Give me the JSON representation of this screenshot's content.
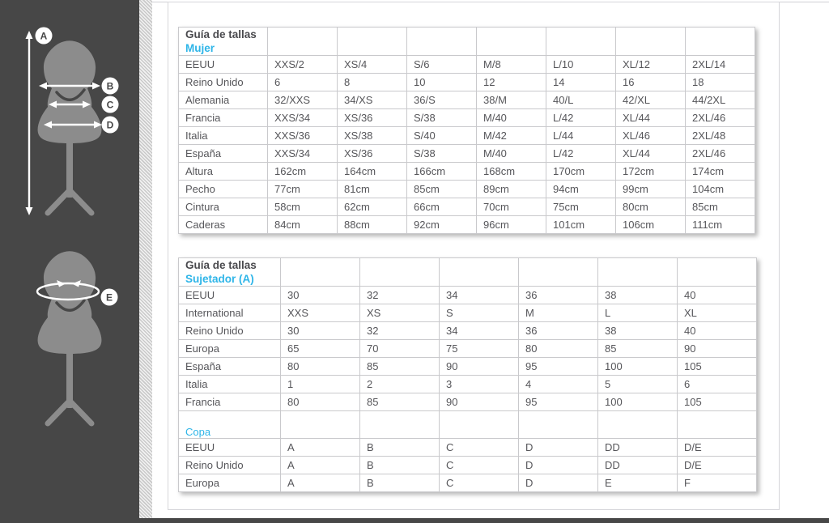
{
  "colors": {
    "accent_cyan": "#2eb5e8",
    "sidebar_bg": "#474747",
    "mannequin_gray": "#8c8c8c",
    "table_border": "#c9c9cc",
    "text": "#56565a"
  },
  "sidebar": {
    "figure1": {
      "labels": {
        "a": "A",
        "b": "B",
        "c": "C",
        "d": "D"
      }
    },
    "figure2": {
      "labels": {
        "e": "E"
      }
    }
  },
  "tables": [
    {
      "title": "Guía de tallas",
      "subtitle": "Mujer",
      "rows": [
        {
          "label": "EEUU",
          "values": [
            "XXS/2",
            "XS/4",
            "S/6",
            "M/8",
            "L/10",
            "XL/12",
            "2XL/14"
          ]
        },
        {
          "label": "Reino Unido",
          "values": [
            "6",
            "8",
            "10",
            "12",
            "14",
            "16",
            "18"
          ]
        },
        {
          "label": "Alemania",
          "values": [
            "32/XXS",
            "34/XS",
            "36/S",
            "38/M",
            "40/L",
            "42/XL",
            "44/2XL"
          ]
        },
        {
          "label": "Francia",
          "values": [
            "XXS/34",
            "XS/36",
            "S/38",
            "M/40",
            "L/42",
            "XL/44",
            "2XL/46"
          ]
        },
        {
          "label": "Italia",
          "values": [
            "XXS/36",
            "XS/38",
            "S/40",
            "M/42",
            "L/44",
            "XL/46",
            "2XL/48"
          ]
        },
        {
          "label": "España",
          "values": [
            "XXS/34",
            "XS/36",
            "S/38",
            "M/40",
            "L/42",
            "XL/44",
            "2XL/46"
          ]
        },
        {
          "label": "Altura",
          "values": [
            "162cm",
            "164cm",
            "166cm",
            "168cm",
            "170cm",
            "172cm",
            "174cm"
          ]
        },
        {
          "label": "Pecho",
          "values": [
            "77cm",
            "81cm",
            "85cm",
            "89cm",
            "94cm",
            "99cm",
            "104cm"
          ]
        },
        {
          "label": "Cintura",
          "values": [
            "58cm",
            "62cm",
            "66cm",
            "70cm",
            "75cm",
            "80cm",
            "85cm"
          ]
        },
        {
          "label": "Caderas",
          "values": [
            "84cm",
            "88cm",
            "92cm",
            "96cm",
            "101cm",
            "106cm",
            "111cm"
          ]
        }
      ]
    },
    {
      "title": "Guía de tallas",
      "subtitle": "Sujetador (A)",
      "rows": [
        {
          "label": "EEUU",
          "values": [
            "30",
            "32",
            "34",
            "36",
            "38",
            "40"
          ]
        },
        {
          "label": "International",
          "values": [
            "XXS",
            "XS",
            "S",
            "M",
            "L",
            "XL"
          ]
        },
        {
          "label": "Reino Unido",
          "values": [
            "30",
            "32",
            "34",
            "36",
            "38",
            "40"
          ]
        },
        {
          "label": "Europa",
          "values": [
            "65",
            "70",
            "75",
            "80",
            "85",
            "90"
          ]
        },
        {
          "label": "España",
          "values": [
            "80",
            "85",
            "90",
            "95",
            "100",
            "105"
          ]
        },
        {
          "label": "Italia",
          "values": [
            "1",
            "2",
            "3",
            "4",
            "5",
            "6"
          ]
        },
        {
          "label": "Francia",
          "values": [
            "80",
            "85",
            "90",
            "95",
            "100",
            "105"
          ]
        }
      ],
      "section2": {
        "title": "Copa",
        "rows": [
          {
            "label": "EEUU",
            "values": [
              "A",
              "B",
              "C",
              "D",
              "DD",
              "D/E"
            ]
          },
          {
            "label": "Reino Unido",
            "values": [
              "A",
              "B",
              "C",
              "D",
              "DD",
              "D/E"
            ]
          },
          {
            "label": "Europa",
            "values": [
              "A",
              "B",
              "C",
              "D",
              "E",
              "F"
            ]
          }
        ]
      }
    }
  ]
}
